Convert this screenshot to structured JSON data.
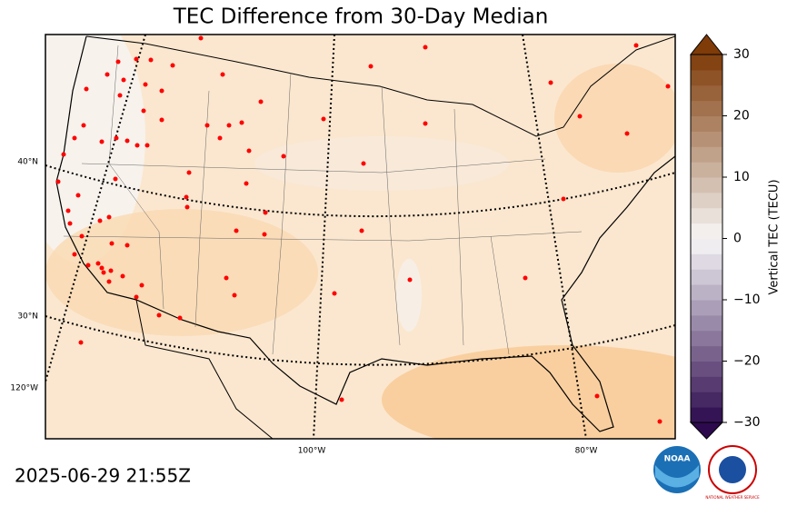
{
  "title": "TEC Difference from 30-Day Median",
  "colorbar": {
    "label": "Vertical TEC (TECU)",
    "lim": [
      -30,
      30
    ],
    "ticks": [
      30,
      20,
      10,
      0,
      {
        "value": -10,
        "label": "−10"
      },
      {
        "value": -20,
        "label": "−20"
      },
      {
        "value": -30,
        "label": "−30"
      }
    ],
    "low_color": "#2d0a4e",
    "mid_color": "#f7f7f7",
    "high_color": "#7f3b08",
    "levels": 24
  },
  "graticule_labels": {
    "lat": [
      "40°N",
      "30°N"
    ],
    "lon": [
      "120°W",
      "100°W",
      "80°W"
    ]
  },
  "timestamp": "2025-06-29 21:55Z",
  "logos": {
    "noaa": "NOAA",
    "nws": "NATIONAL WEATHER SERVICE"
  }
}
